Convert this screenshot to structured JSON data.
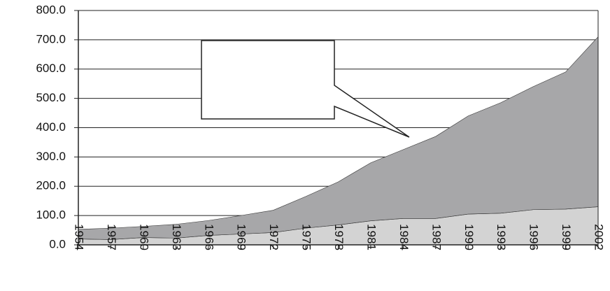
{
  "chart_data": {
    "type": "stacked-area",
    "x": [
      1954,
      1957,
      1960,
      1963,
      1966,
      1969,
      1972,
      1975,
      1978,
      1981,
      1984,
      1987,
      1990,
      1993,
      1996,
      1999,
      2002
    ],
    "series": [
      {
        "color": "#d3d3d3",
        "values": [
          20,
          18,
          25,
          23,
          32,
          37,
          42,
          57,
          68,
          82,
          90,
          90,
          105,
          108,
          120,
          122,
          130
        ]
      },
      {
        "color": "#a7a7a9",
        "values": [
          33,
          39,
          38,
          47,
          51,
          63,
          76,
          108,
          147,
          198,
          235,
          280,
          335,
          377,
          420,
          468,
          580
        ]
      }
    ],
    "xlim": [
      1954,
      2002
    ],
    "xticks": [
      1954,
      1957,
      1960,
      1963,
      1966,
      1969,
      1972,
      1975,
      1978,
      1981,
      1984,
      1987,
      1990,
      1993,
      1996,
      1999,
      2002
    ],
    "ylim": [
      0,
      800
    ],
    "yticks": [
      {
        "value": 0,
        "label": "0.0"
      },
      {
        "value": 100,
        "label": "100.0"
      },
      {
        "value": 200,
        "label": "200.0"
      },
      {
        "value": 300,
        "label": "300.0"
      },
      {
        "value": 400,
        "label": "400.0"
      },
      {
        "value": 500,
        "label": "500.0"
      },
      {
        "value": 600,
        "label": "600.0"
      },
      {
        "value": 700,
        "label": "700.0"
      },
      {
        "value": 800,
        "label": "800.0"
      }
    ],
    "grid": true
  }
}
